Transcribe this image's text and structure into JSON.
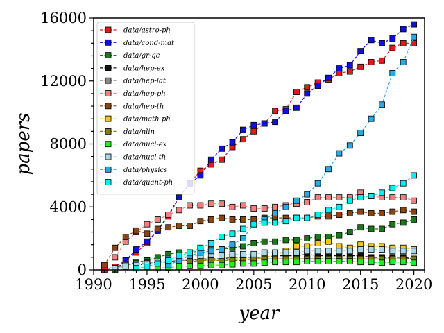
{
  "chart_data": {
    "type": "line",
    "xlabel": "year",
    "ylabel": "papers",
    "xlim": [
      1990,
      2021
    ],
    "ylim": [
      0,
      16000
    ],
    "xticks": [
      "1990",
      "1995",
      "2000",
      "2005",
      "2010",
      "2015",
      "2020"
    ],
    "yticks": [
      "0",
      "4000",
      "8000",
      "12000",
      "16000"
    ],
    "grid": false,
    "legend_position": "upper-left",
    "marker": "square",
    "line_style": "dashed",
    "series": [
      {
        "name": "data/astro-ph",
        "color": "#e31a1c",
        "x": [
          1991,
          1992,
          1993,
          1994,
          1995,
          1996,
          1997,
          1998,
          1999,
          2000,
          2001,
          2002,
          2003,
          2004,
          2005,
          2006,
          2007,
          2008,
          2009,
          2010,
          2011,
          2012,
          2013,
          2014,
          2015,
          2016,
          2017,
          2018,
          2019,
          2020
        ],
        "values": [
          0,
          200,
          600,
          1100,
          1700,
          2500,
          3400,
          4600,
          5500,
          6300,
          6700,
          7000,
          7800,
          8300,
          8800,
          9300,
          10100,
          10200,
          11300,
          11600,
          11900,
          12100,
          12500,
          12600,
          12900,
          13200,
          13300,
          14100,
          14400,
          14400
        ]
      },
      {
        "name": "data/cond-mat",
        "color": "#1010e0",
        "x": [
          1992,
          1993,
          1994,
          1995,
          1996,
          1997,
          1998,
          1999,
          2000,
          2001,
          2002,
          2003,
          2004,
          2005,
          2006,
          2007,
          2008,
          2009,
          2010,
          2011,
          2012,
          2013,
          2014,
          2015,
          2016,
          2017,
          2018,
          2019,
          2020
        ],
        "values": [
          0,
          600,
          1300,
          1800,
          2500,
          3500,
          4600,
          5500,
          6000,
          7000,
          7700,
          8100,
          8900,
          9200,
          9300,
          9400,
          10100,
          10300,
          11200,
          11700,
          12200,
          12800,
          13000,
          13900,
          14600,
          14400,
          14700,
          15300,
          15600
        ]
      },
      {
        "name": "data/gr-qc",
        "color": "#1a7a1a",
        "x": [
          1992,
          1993,
          1994,
          1995,
          1996,
          1997,
          1998,
          1999,
          2000,
          2001,
          2002,
          2003,
          2004,
          2005,
          2006,
          2007,
          2008,
          2009,
          2010,
          2011,
          2012,
          2013,
          2014,
          2015,
          2016,
          2017,
          2018,
          2019,
          2020
        ],
        "values": [
          0,
          300,
          500,
          600,
          800,
          1000,
          1100,
          1100,
          1200,
          1300,
          1300,
          1400,
          1500,
          1700,
          1800,
          1800,
          1900,
          1900,
          2000,
          2100,
          2100,
          2200,
          2400,
          2700,
          2600,
          2600,
          2900,
          3000,
          3200
        ]
      },
      {
        "name": "data/hep-ex",
        "color": "#111111",
        "x": [
          1994,
          1995,
          1996,
          1997,
          1998,
          1999,
          2000,
          2001,
          2002,
          2003,
          2004,
          2005,
          2006,
          2007,
          2008,
          2009,
          2010,
          2011,
          2012,
          2013,
          2014,
          2015,
          2016,
          2017,
          2018,
          2019,
          2020
        ],
        "values": [
          300,
          400,
          500,
          500,
          600,
          600,
          700,
          700,
          700,
          800,
          800,
          800,
          800,
          900,
          900,
          900,
          1000,
          900,
          900,
          900,
          900,
          900,
          800,
          800,
          800,
          800,
          700
        ]
      },
      {
        "name": "data/hep-lat",
        "color": "#888888",
        "x": [
          1992,
          1993,
          1994,
          1995,
          1996,
          1997,
          1998,
          1999,
          2000,
          2001,
          2002,
          2003,
          2004,
          2005,
          2006,
          2007,
          2008,
          2009,
          2010,
          2011,
          2012,
          2013,
          2014,
          2015,
          2016,
          2017,
          2018,
          2019,
          2020
        ],
        "values": [
          100,
          300,
          400,
          450,
          500,
          550,
          600,
          600,
          650,
          650,
          650,
          650,
          700,
          700,
          700,
          700,
          700,
          700,
          700,
          700,
          700,
          700,
          700,
          700,
          700,
          700,
          700,
          700,
          700
        ]
      },
      {
        "name": "data/hep-ph",
        "color": "#f08080",
        "x": [
          1992,
          1993,
          1994,
          1995,
          1996,
          1997,
          1998,
          1999,
          2000,
          2001,
          2002,
          2003,
          2004,
          2005,
          2006,
          2007,
          2008,
          2009,
          2010,
          2011,
          2012,
          2013,
          2014,
          2015,
          2016,
          2017,
          2018,
          2019,
          2020
        ],
        "values": [
          800,
          1800,
          2400,
          2900,
          3200,
          3500,
          3800,
          4100,
          4100,
          4200,
          4200,
          4000,
          4100,
          3900,
          3900,
          4000,
          4100,
          4200,
          4300,
          4600,
          4600,
          4600,
          4600,
          4900,
          4700,
          4600,
          4600,
          4600,
          4400
        ]
      },
      {
        "name": "data/hep-th",
        "color": "#8b4513",
        "x": [
          1991,
          1992,
          1993,
          1994,
          1995,
          1996,
          1997,
          1998,
          1999,
          2000,
          2001,
          2002,
          2003,
          2004,
          2005,
          2006,
          2007,
          2008,
          2009,
          2010,
          2011,
          2012,
          2013,
          2014,
          2015,
          2016,
          2017,
          2018,
          2019,
          2020
        ],
        "values": [
          300,
          1400,
          2100,
          2500,
          2300,
          2600,
          2700,
          2800,
          2800,
          3100,
          3200,
          3300,
          3200,
          3200,
          3200,
          3300,
          3300,
          3300,
          3300,
          3300,
          3400,
          3400,
          3500,
          3600,
          3700,
          3600,
          3600,
          3700,
          3800,
          3700
        ]
      },
      {
        "name": "data/math-ph",
        "color": "#f5c518",
        "x": [
          1997,
          1998,
          1999,
          2000,
          2001,
          2002,
          2003,
          2004,
          2005,
          2006,
          2007,
          2008,
          2009,
          2010,
          2011,
          2012,
          2013,
          2014,
          2015,
          2016,
          2017,
          2018,
          2019,
          2020
        ],
        "values": [
          400,
          500,
          500,
          600,
          600,
          600,
          700,
          700,
          700,
          800,
          900,
          1200,
          1500,
          1500,
          1700,
          1800,
          1500,
          1400,
          1600,
          1500,
          1500,
          1400,
          1400,
          1300
        ]
      },
      {
        "name": "data/nlin",
        "color": "#808000",
        "x": [
          1999,
          2000,
          2001,
          2002,
          2003,
          2004,
          2005,
          2006,
          2007,
          2008,
          2009,
          2010,
          2011,
          2012,
          2013,
          2014,
          2015,
          2016,
          2017,
          2018,
          2019,
          2020
        ],
        "values": [
          500,
          600,
          600,
          600,
          600,
          600,
          700,
          700,
          700,
          700,
          700,
          700,
          700,
          700,
          700,
          700,
          700,
          700,
          700,
          700,
          700,
          700
        ]
      },
      {
        "name": "data/nucl-ex",
        "color": "#22ee22",
        "x": [
          1996,
          1997,
          1998,
          1999,
          2000,
          2001,
          2002,
          2003,
          2004,
          2005,
          2006,
          2007,
          2008,
          2009,
          2010,
          2011,
          2012,
          2013,
          2014,
          2015,
          2016,
          2017,
          2018,
          2019,
          2020
        ],
        "values": [
          100,
          150,
          200,
          250,
          250,
          300,
          300,
          350,
          400,
          400,
          450,
          500,
          500,
          500,
          550,
          550,
          550,
          550,
          550,
          500,
          500,
          450,
          500,
          500,
          450
        ]
      },
      {
        "name": "data/nucl-th",
        "color": "#a8d8e8",
        "x": [
          1992,
          1993,
          1994,
          1995,
          1996,
          1997,
          1998,
          1999,
          2000,
          2001,
          2002,
          2003,
          2004,
          2005,
          2006,
          2007,
          2008,
          2009,
          2010,
          2011,
          2012,
          2013,
          2014,
          2015,
          2016,
          2017,
          2018,
          2019,
          2020
        ],
        "values": [
          100,
          200,
          300,
          400,
          500,
          700,
          800,
          900,
          900,
          1000,
          900,
          1000,
          1000,
          1000,
          1100,
          1100,
          1100,
          1100,
          1200,
          1200,
          1200,
          1200,
          1200,
          1300,
          1300,
          1300,
          1200,
          1200,
          1200
        ]
      },
      {
        "name": "data/physics",
        "color": "#29a9e6",
        "x": [
          1997,
          1998,
          1999,
          2000,
          2001,
          2002,
          2003,
          2004,
          2005,
          2006,
          2007,
          2008,
          2009,
          2010,
          2011,
          2012,
          2013,
          2014,
          2015,
          2016,
          2017,
          2018,
          2019,
          2020
        ],
        "values": [
          300,
          600,
          900,
          1100,
          1200,
          1300,
          1600,
          2000,
          2900,
          3200,
          3600,
          4000,
          4400,
          4800,
          5500,
          6400,
          7400,
          7900,
          8700,
          9600,
          10500,
          12500,
          13200,
          14800
        ]
      },
      {
        "name": "data/quant-ph",
        "color": "#00f0f0",
        "x": [
          1994,
          1995,
          1996,
          1997,
          1998,
          1999,
          2000,
          2001,
          2002,
          2003,
          2004,
          2005,
          2006,
          2007,
          2008,
          2009,
          2010,
          2011,
          2012,
          2013,
          2014,
          2015,
          2016,
          2017,
          2018,
          2019,
          2020
        ],
        "values": [
          100,
          200,
          400,
          600,
          900,
          1100,
          1400,
          1700,
          2100,
          2300,
          2600,
          2900,
          3000,
          3000,
          3100,
          3300,
          3300,
          3500,
          3800,
          4000,
          4400,
          4600,
          4700,
          4900,
          5200,
          5500,
          6000
        ]
      }
    ]
  }
}
